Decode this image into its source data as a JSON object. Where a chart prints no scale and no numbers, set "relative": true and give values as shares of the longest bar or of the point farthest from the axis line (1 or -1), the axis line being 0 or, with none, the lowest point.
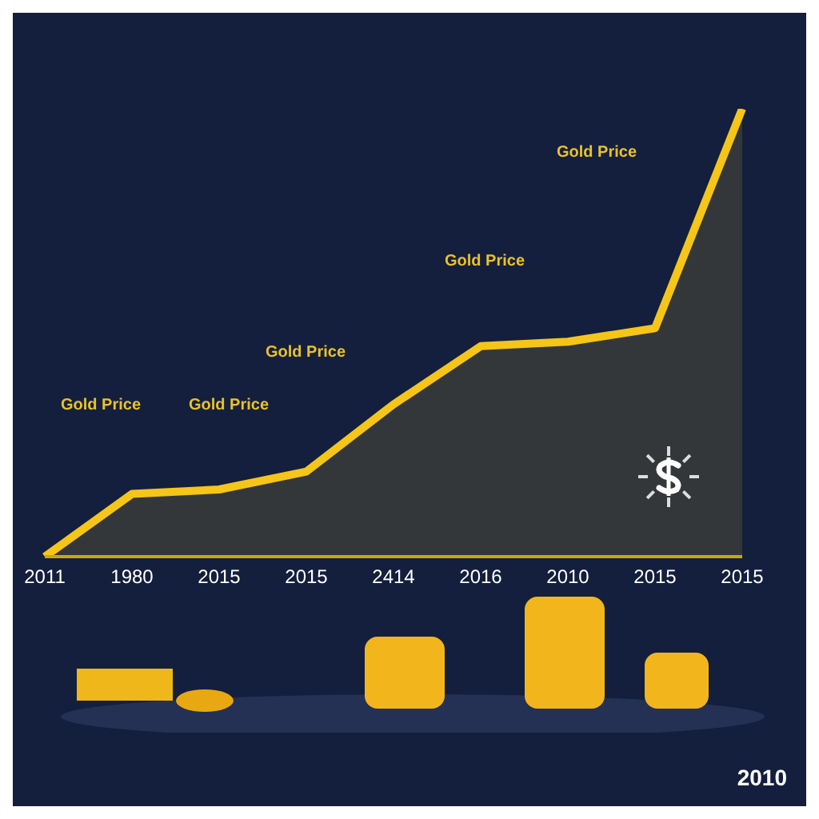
{
  "chart_data": {
    "type": "area",
    "relative": true,
    "categories": [
      "2011",
      "1980",
      "2015",
      "2015",
      "2414",
      "2016",
      "2010",
      "2015",
      "2015"
    ],
    "series": [
      {
        "color": "#f5c518",
        "values": [
          0,
          0.14,
          0.15,
          0.19,
          0.34,
          0.47,
          0.48,
          0.51,
          1
        ]
      }
    ],
    "annotations": [
      "Gold Price",
      "Gold Price",
      "Gold Price",
      "Gold Price",
      "Gold Price",
      "2010"
    ],
    "grid": false,
    "legend": false
  }
}
